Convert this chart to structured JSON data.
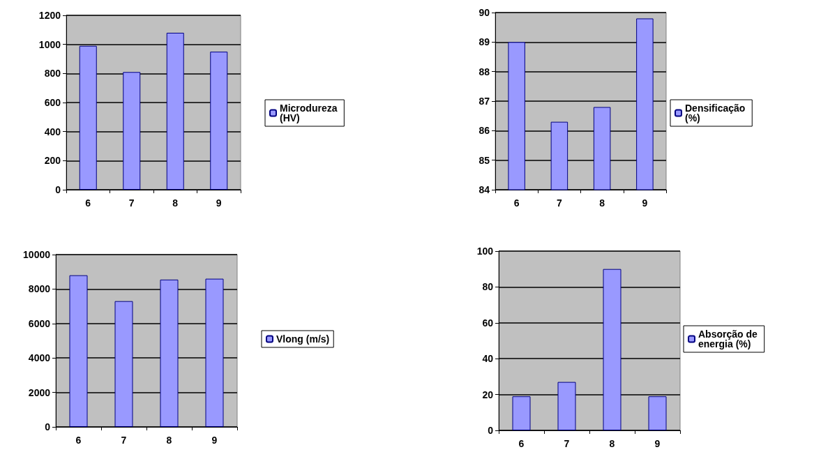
{
  "chart_data": [
    {
      "type": "bar",
      "categories": [
        "6",
        "7",
        "8",
        "9"
      ],
      "series": [
        {
          "name": "Microdureza (HV)",
          "color": "#9999ff",
          "values": [
            990,
            810,
            1080,
            950
          ]
        }
      ],
      "ylim": [
        0,
        1200
      ],
      "yticks": [
        0,
        200,
        400,
        600,
        800,
        1000,
        1200
      ],
      "grid": "y",
      "legend": "right"
    },
    {
      "type": "bar",
      "categories": [
        "6",
        "7",
        "8",
        "9"
      ],
      "series": [
        {
          "name": "Densificação (%)",
          "color": "#9999ff",
          "values": [
            89.0,
            86.3,
            86.8,
            89.8
          ]
        }
      ],
      "ylim": [
        84,
        90
      ],
      "yticks": [
        84,
        85,
        86,
        87,
        88,
        89,
        90
      ],
      "grid": "y",
      "legend": "right"
    },
    {
      "type": "bar",
      "categories": [
        "6",
        "7",
        "8",
        "9"
      ],
      "series": [
        {
          "name": "Vlong (m/s)",
          "color": "#9999ff",
          "values": [
            8800,
            7300,
            8550,
            8600
          ]
        }
      ],
      "ylim": [
        0,
        10000
      ],
      "yticks": [
        0,
        2000,
        4000,
        6000,
        8000,
        10000
      ],
      "grid": "y",
      "legend": "right"
    },
    {
      "type": "bar",
      "categories": [
        "6",
        "7",
        "8",
        "9"
      ],
      "series": [
        {
          "name": "Absorção de energia (%)",
          "color": "#9999ff",
          "values": [
            19,
            27,
            90,
            19
          ]
        }
      ],
      "ylim": [
        0,
        100
      ],
      "yticks": [
        0,
        20,
        40,
        60,
        80,
        100
      ],
      "grid": "y",
      "legend": "right"
    }
  ]
}
